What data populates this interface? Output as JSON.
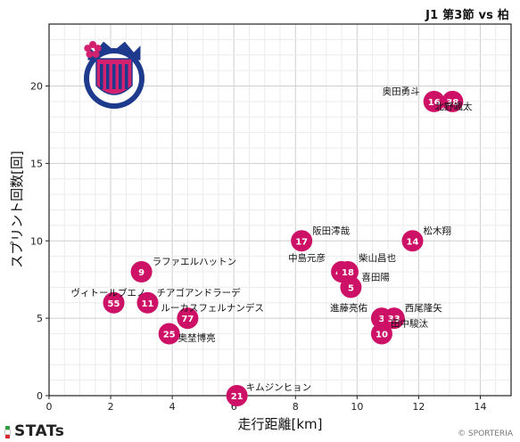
{
  "header": {
    "match_title": "J1 第3節 vs 柏"
  },
  "footer": {
    "brand": "STATs",
    "copyright": "© SPORTERIA",
    "stripe_colors": [
      "#2e9e3e",
      "#ffffff",
      "#d8262f"
    ]
  },
  "team_logo": {
    "name": "Cerezo Osaka",
    "icon": "cerezo-crest",
    "colors": [
      "#d2226f",
      "#1e3a8c",
      "#ffffff"
    ]
  },
  "chart_data": {
    "type": "scatter",
    "xlabel": "走行距離[km]",
    "ylabel": "スプリント回数[回]",
    "xlim": [
      0,
      15
    ],
    "ylim": [
      0,
      24
    ],
    "xticks": [
      0,
      2,
      4,
      6,
      8,
      10,
      12,
      14
    ],
    "yticks": [
      0,
      5,
      10,
      15,
      20
    ],
    "grid": true,
    "marker_color": "#cc1166",
    "points": [
      {
        "number": "16",
        "name": "奥田勇斗",
        "x": 12.5,
        "y": 19
      },
      {
        "number": "38",
        "name": "北野颯太",
        "x": 13.1,
        "y": 19
      },
      {
        "number": "17",
        "name": "阪田澪哉",
        "x": 8.2,
        "y": 10
      },
      {
        "number": "14",
        "name": "松木翔",
        "x": 11.8,
        "y": 10
      },
      {
        "number": "9",
        "name": "ラファエルハットン",
        "x": 3.0,
        "y": 8
      },
      {
        "number": "48",
        "name": "中島元彦",
        "x": 9.5,
        "y": 8
      },
      {
        "number": "18",
        "name": "柴山昌也",
        "x": 9.7,
        "y": 8
      },
      {
        "number": "5",
        "name": "喜田陽",
        "x": 9.8,
        "y": 7
      },
      {
        "number": "55",
        "name": "ヴィトールブエノ",
        "x": 2.1,
        "y": 6
      },
      {
        "number": "11",
        "name": "チアゴアンドラーデ",
        "x": 3.2,
        "y": 6
      },
      {
        "number": "77",
        "name": "ルーカスフェルナンデス",
        "x": 4.5,
        "y": 5
      },
      {
        "number": "3",
        "name": "進藤亮佑",
        "x": 10.8,
        "y": 5
      },
      {
        "number": "33",
        "name": "西尾隆矢",
        "x": 11.2,
        "y": 5
      },
      {
        "number": "25",
        "name": "奥埜博亮",
        "x": 3.9,
        "y": 4
      },
      {
        "number": "10",
        "name": "田中駿汰",
        "x": 10.8,
        "y": 4
      },
      {
        "number": "21",
        "name": "キムジンヒョン",
        "x": 6.1,
        "y": 0
      }
    ]
  }
}
